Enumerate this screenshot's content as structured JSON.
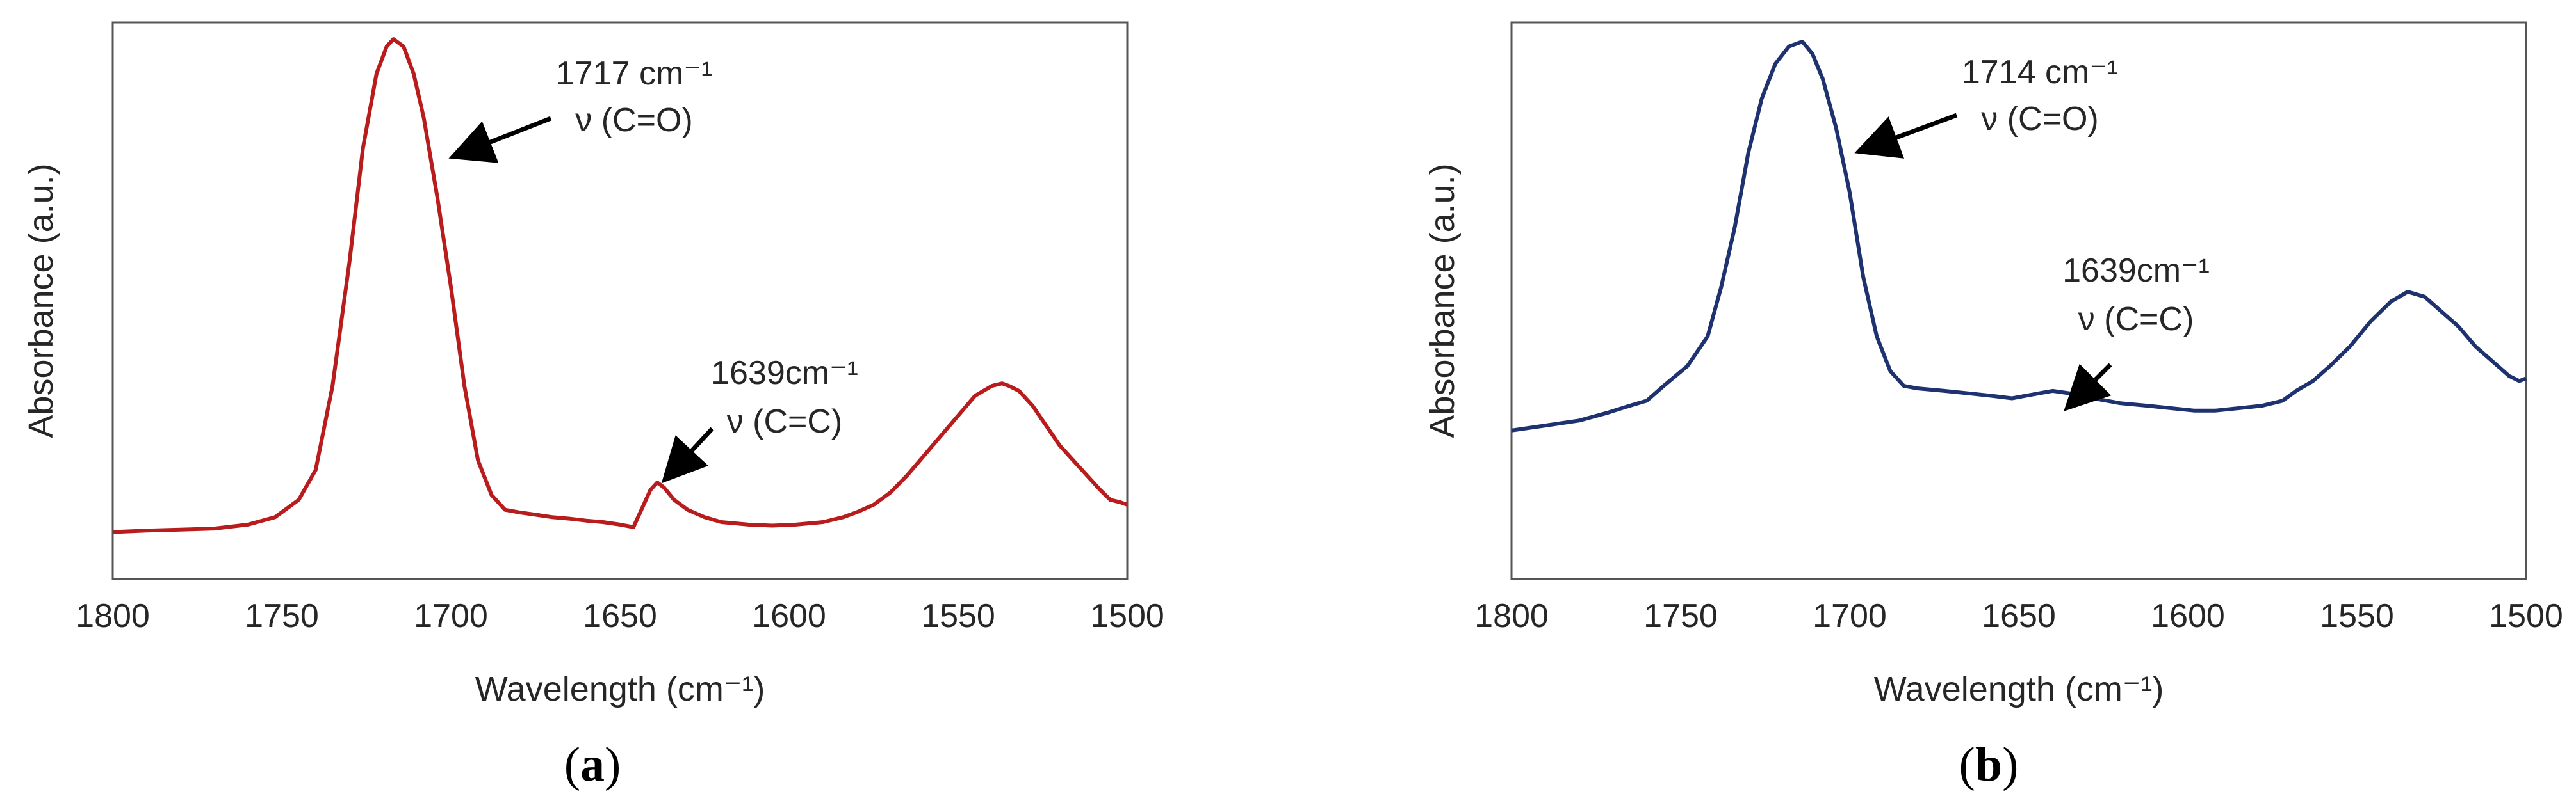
{
  "chart_data": [
    {
      "type": "line",
      "panel_label": "a",
      "xlabel": "Wavelength (cm⁻¹)",
      "ylabel": "Absorbance (a.u.)",
      "xlim": [
        1800,
        1500
      ],
      "x_reversed": true,
      "ylim": [
        0,
        1
      ],
      "x_ticks": [
        "1800",
        "1750",
        "1700",
        "1650",
        "1600",
        "1550",
        "1500"
      ],
      "y_ticks_shown": false,
      "grid": false,
      "color": "#b81c1c",
      "series": [
        {
          "x": [
            1800,
            1790,
            1780,
            1770,
            1760,
            1752,
            1745,
            1740,
            1735,
            1730,
            1726,
            1722,
            1719,
            1717,
            1714,
            1711,
            1708,
            1704,
            1700,
            1696,
            1692,
            1688,
            1684,
            1680,
            1675,
            1670,
            1665,
            1660,
            1655,
            1650,
            1646,
            1643,
            1641,
            1639,
            1637,
            1634,
            1630,
            1625,
            1620,
            1612,
            1605,
            1598,
            1590,
            1584,
            1580,
            1575,
            1570,
            1565,
            1560,
            1555,
            1550,
            1545,
            1540,
            1537,
            1535,
            1532,
            1528,
            1524,
            1520,
            1516,
            1512,
            1508,
            1505,
            1502,
            1500
          ],
          "y": [
            0.005,
            0.008,
            0.01,
            0.012,
            0.02,
            0.035,
            0.07,
            0.13,
            0.3,
            0.55,
            0.78,
            0.93,
            0.985,
            1.0,
            0.985,
            0.93,
            0.84,
            0.68,
            0.5,
            0.3,
            0.15,
            0.08,
            0.05,
            0.045,
            0.04,
            0.035,
            0.032,
            0.028,
            0.025,
            0.02,
            0.015,
            0.06,
            0.09,
            0.105,
            0.095,
            0.07,
            0.05,
            0.035,
            0.025,
            0.02,
            0.018,
            0.02,
            0.025,
            0.035,
            0.045,
            0.06,
            0.085,
            0.12,
            0.16,
            0.2,
            0.24,
            0.28,
            0.3,
            0.305,
            0.3,
            0.29,
            0.26,
            0.22,
            0.18,
            0.15,
            0.12,
            0.09,
            0.07,
            0.065,
            0.06
          ]
        }
      ],
      "annotations": [
        {
          "line1": "1717 cm⁻¹",
          "line2": "ν (C=O)"
        },
        {
          "line1": "1639cm⁻¹",
          "line2": "ν (C=C)"
        }
      ]
    },
    {
      "type": "line",
      "panel_label": "b",
      "xlabel": "Wavelength (cm⁻¹)",
      "ylabel": "Absorbance (a.u.)",
      "xlim": [
        1800,
        1500
      ],
      "x_reversed": true,
      "ylim": [
        0,
        1
      ],
      "x_ticks": [
        "1800",
        "1750",
        "1700",
        "1650",
        "1600",
        "1550",
        "1500"
      ],
      "y_ticks_shown": false,
      "grid": false,
      "color": "#1f3270",
      "series": [
        {
          "x": [
            1800,
            1790,
            1780,
            1772,
            1765,
            1760,
            1755,
            1748,
            1742,
            1738,
            1734,
            1730,
            1726,
            1722,
            1718,
            1716,
            1714,
            1711,
            1708,
            1704,
            1700,
            1696,
            1692,
            1688,
            1684,
            1680,
            1672,
            1665,
            1658,
            1652,
            1648,
            1644,
            1640,
            1635,
            1628,
            1620,
            1612,
            1605,
            1598,
            1592,
            1585,
            1578,
            1572,
            1568,
            1563,
            1558,
            1552,
            1546,
            1540,
            1535,
            1530,
            1525,
            1520,
            1515,
            1510,
            1505,
            1502,
            1500
          ],
          "y": [
            0.21,
            0.22,
            0.23,
            0.245,
            0.26,
            0.27,
            0.3,
            0.34,
            0.4,
            0.5,
            0.62,
            0.77,
            0.88,
            0.95,
            0.985,
            0.99,
            0.995,
            0.97,
            0.92,
            0.82,
            0.69,
            0.52,
            0.4,
            0.33,
            0.3,
            0.295,
            0.29,
            0.285,
            0.28,
            0.275,
            0.28,
            0.285,
            0.29,
            0.285,
            0.275,
            0.265,
            0.26,
            0.255,
            0.25,
            0.25,
            0.255,
            0.26,
            0.27,
            0.29,
            0.31,
            0.34,
            0.38,
            0.43,
            0.47,
            0.49,
            0.48,
            0.45,
            0.42,
            0.38,
            0.35,
            0.32,
            0.31,
            0.315
          ]
        }
      ],
      "annotations": [
        {
          "line1": "1714 cm⁻¹",
          "line2": "ν (C=O)"
        },
        {
          "line1": "1639cm⁻¹",
          "line2": "ν (C=C)"
        }
      ]
    }
  ]
}
